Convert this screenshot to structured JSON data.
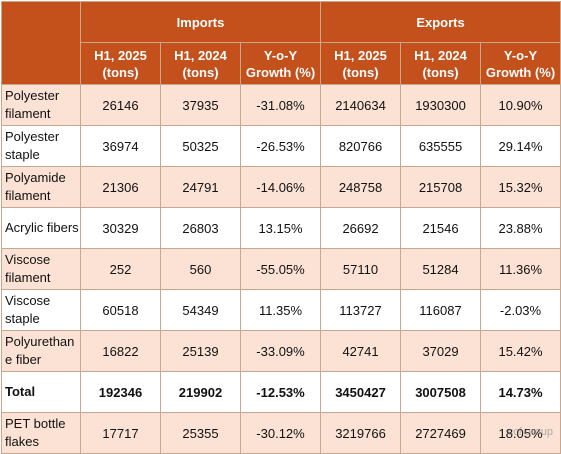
{
  "header": {
    "imports": "Imports",
    "exports": "Exports",
    "columns": [
      "H1, 2025\n(tons)",
      "H1, 2024\n(tons)",
      "Y-o-Y\nGrowth (%)",
      "H1, 2025\n(tons)",
      "H1, 2024\n(tons)",
      "Y-o-Y\nGrowth (%)"
    ]
  },
  "rows": [
    {
      "label": "Polyester filament",
      "values": [
        "26146",
        "37935",
        "-31.08%",
        "2140634",
        "1930300",
        "10.90%"
      ]
    },
    {
      "label": "Polyester staple",
      "values": [
        "36974",
        "50325",
        "-26.53%",
        "820766",
        "635555",
        "29.14%"
      ]
    },
    {
      "label": "Polyamide filament",
      "values": [
        "21306",
        "24791",
        "-14.06%",
        "248758",
        "215708",
        "15.32%"
      ]
    },
    {
      "label": "Acrylic fibers",
      "values": [
        "30329",
        "26803",
        "13.15%",
        "26692",
        "21546",
        "23.88%"
      ]
    },
    {
      "label": "Viscose filament",
      "values": [
        "252",
        "560",
        "-55.05%",
        "57110",
        "51284",
        "11.36%"
      ]
    },
    {
      "label": "Viscose staple",
      "values": [
        "60518",
        "54349",
        "11.35%",
        "113727",
        "116087",
        "-2.03%"
      ]
    },
    {
      "label": "Polyurethane fiber",
      "values": [
        "16822",
        "25139",
        "-33.09%",
        "42741",
        "37029",
        "15.42%"
      ]
    },
    {
      "label": "Total",
      "values": [
        "192346",
        "219902",
        "-12.53%",
        "3450427",
        "3007508",
        "14.73%"
      ]
    },
    {
      "label": "PET bottle flakes",
      "values": [
        "17717",
        "25355",
        "-30.12%",
        "3219766",
        "2727469",
        "18.05%"
      ]
    }
  ],
  "watermark": "ccf group"
}
